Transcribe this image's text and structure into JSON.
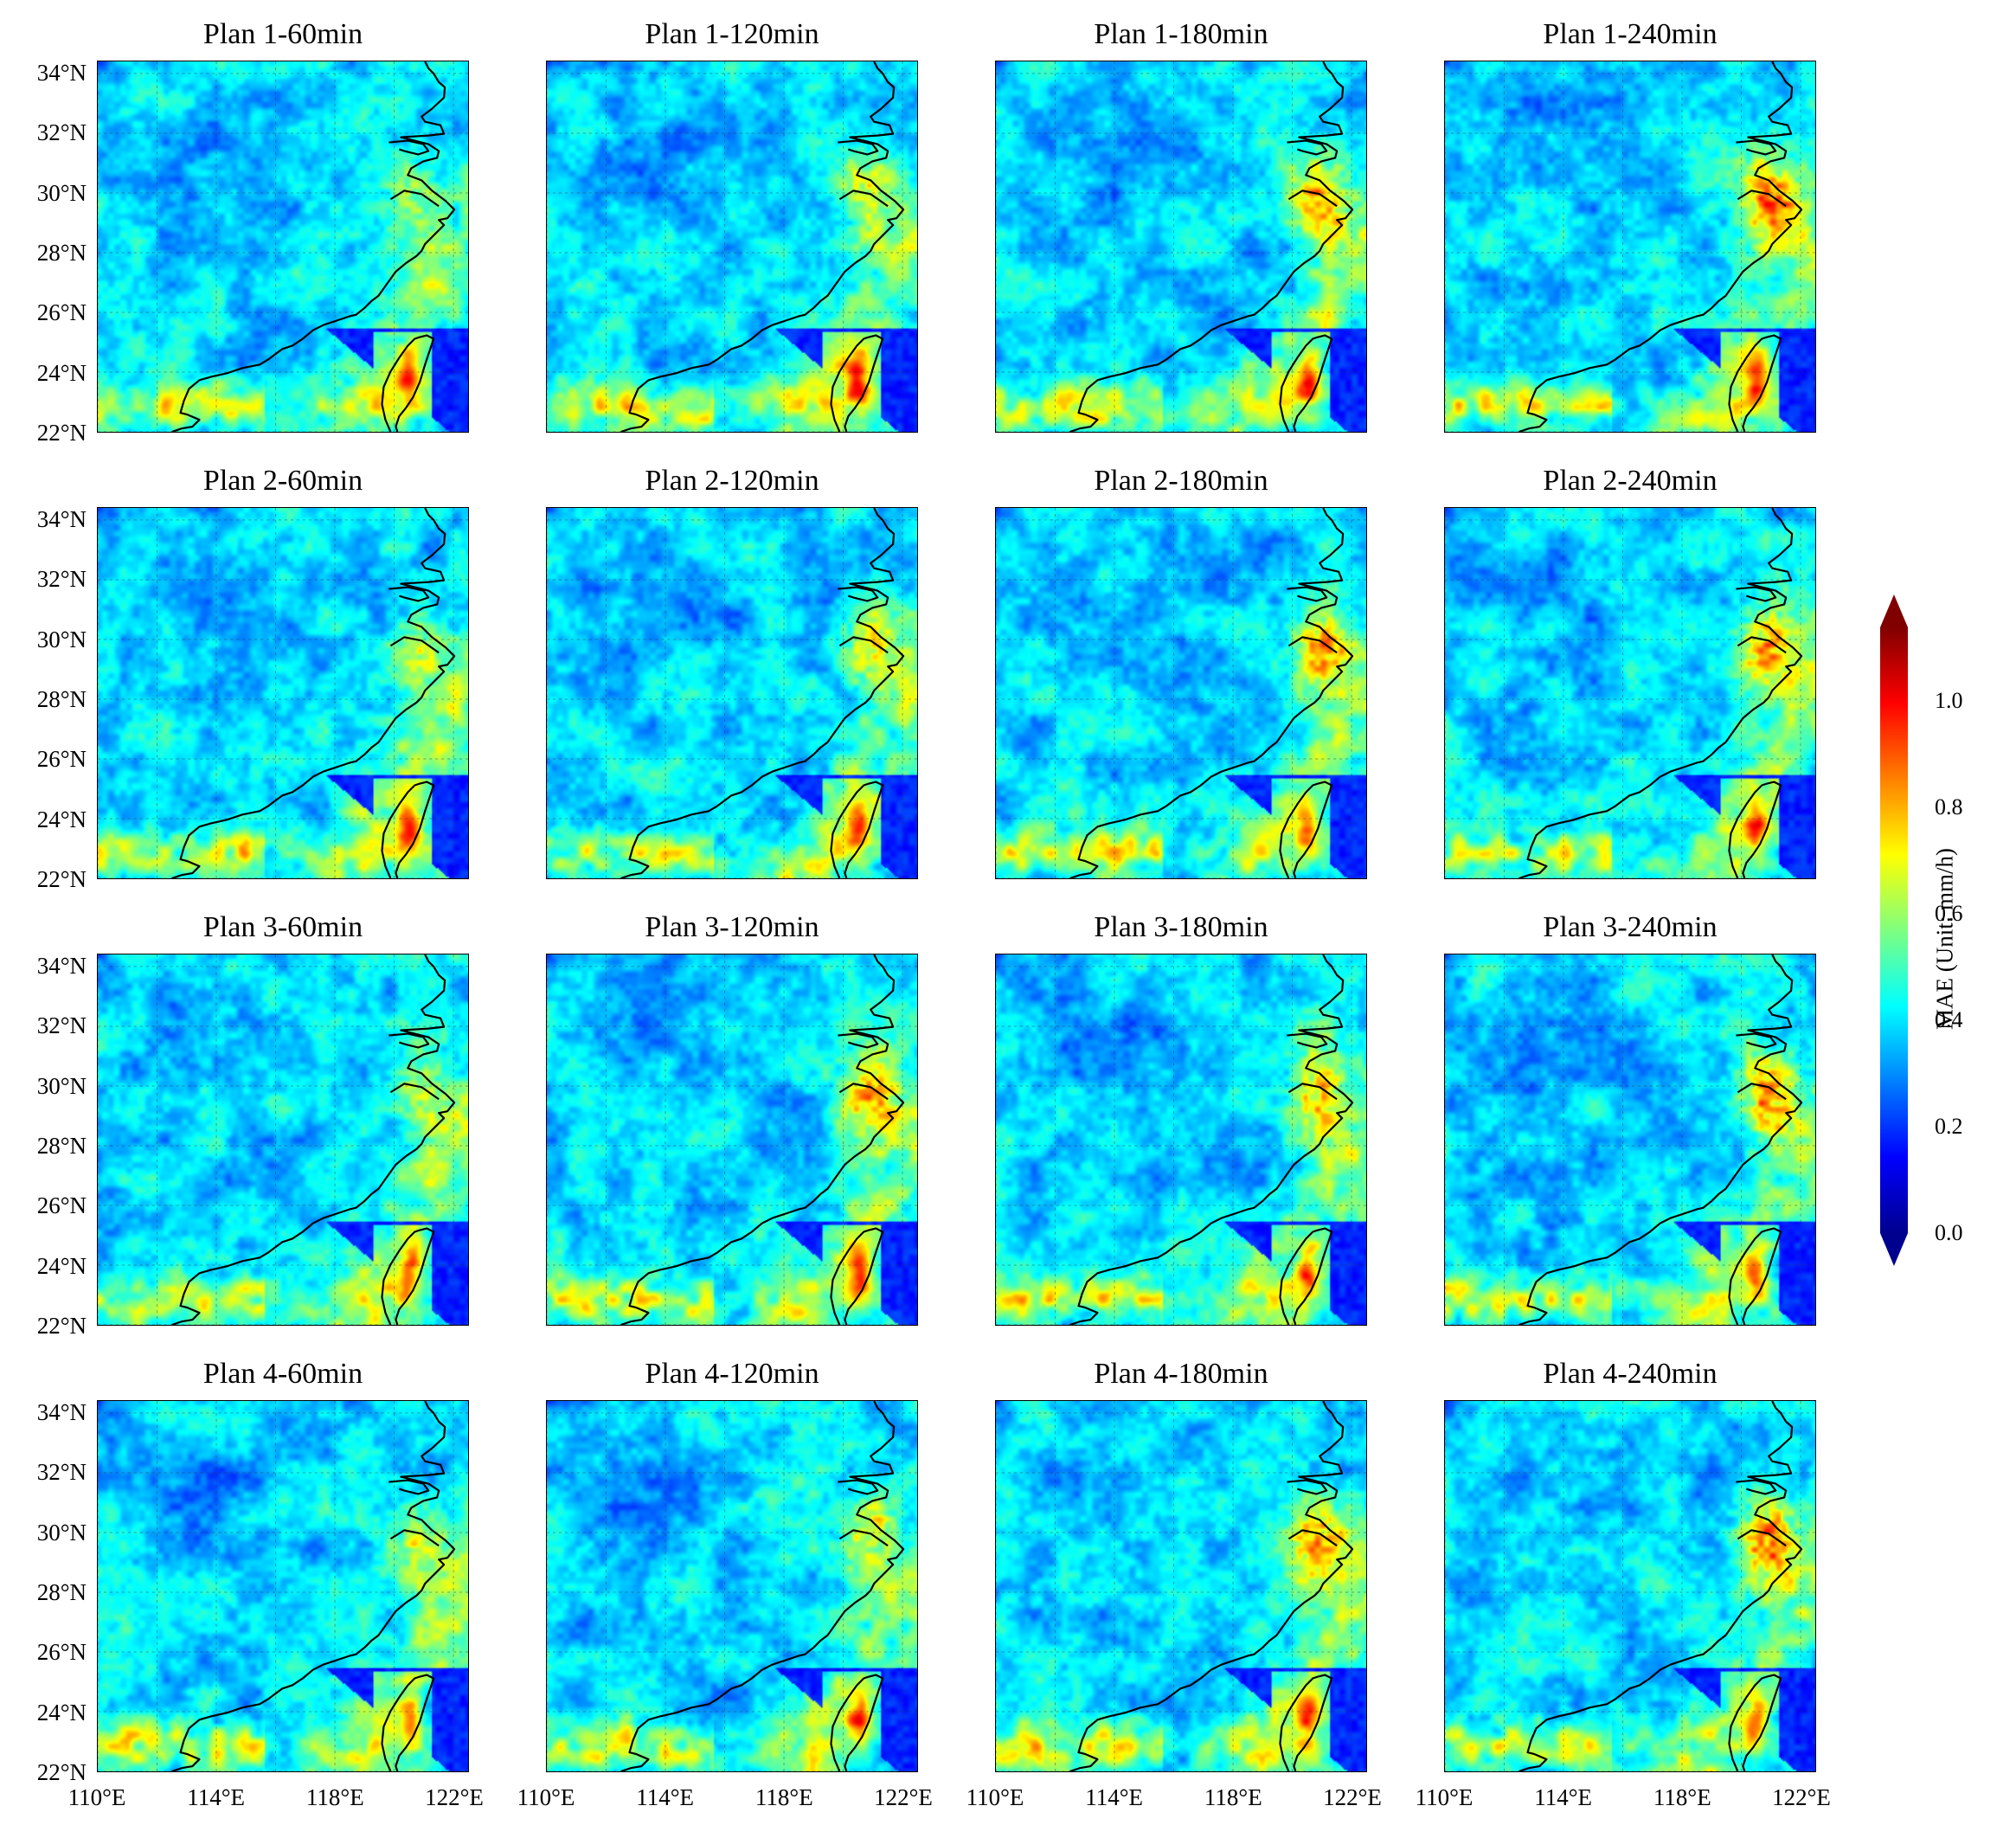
{
  "panel_titles": [
    [
      "Plan 1-60min",
      "Plan 1-120min",
      "Plan 1-180min",
      "Plan 1-240min"
    ],
    [
      "Plan 2-60min",
      "Plan 2-120min",
      "Plan 2-180min",
      "Plan 2-240min"
    ],
    [
      "Plan 3-60min",
      "Plan 3-120min",
      "Plan 3-180min",
      "Plan 3-240min"
    ],
    [
      "Plan 4-60min",
      "Plan 4-120min",
      "Plan 4-180min",
      "Plan 4-240min"
    ]
  ],
  "lat_labels": [
    "34°N",
    "32°N",
    "30°N",
    "28°N",
    "26°N",
    "24°N",
    "22°N"
  ],
  "lon_labels": [
    "110°E",
    "114°E",
    "118°E",
    "122°E"
  ],
  "colorbar": {
    "label": "MAE (Unit: mm/h)",
    "ticks": [
      "1.0",
      "0.8",
      "0.6",
      "0.4",
      "0.2",
      "0.0"
    ],
    "range": [
      0.0,
      1.2
    ],
    "extend": "both",
    "colormap": "jet"
  },
  "extent": {
    "lon_min": 110,
    "lon_max": 122.7,
    "lat_min": 22,
    "lat_max": 34.7
  },
  "colors": {
    "coastline": "#000000",
    "grid": "#333333"
  }
}
